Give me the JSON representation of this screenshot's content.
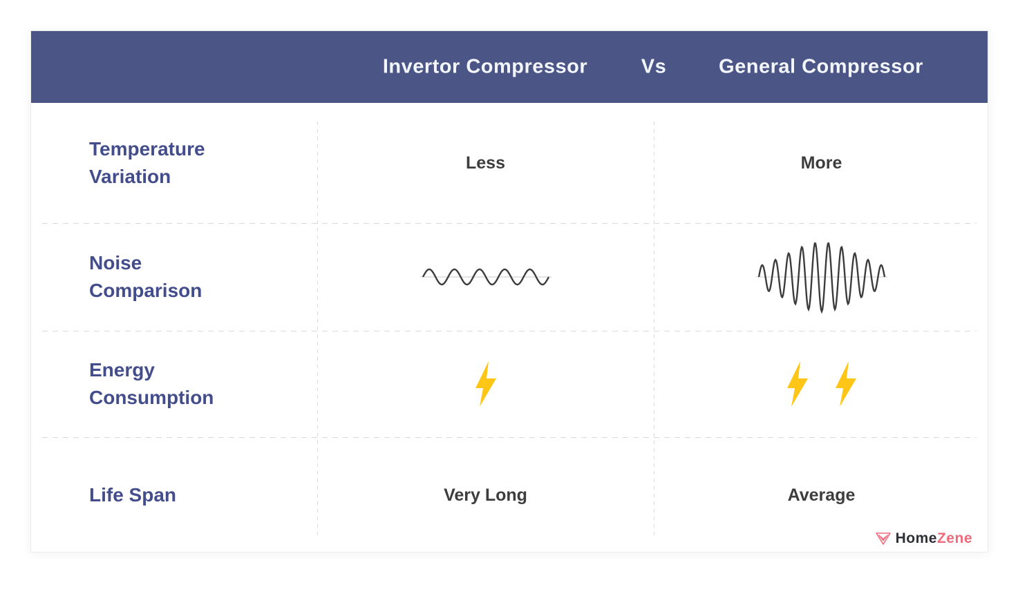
{
  "header": {
    "left_title": "Invertor Compressor",
    "separator": "Vs",
    "right_title": "General Compressor"
  },
  "rows": [
    {
      "label": "Temperature Variation",
      "invertor_value": "Less",
      "general_value": "More"
    },
    {
      "label": "Noise Comparison",
      "invertor_icon": "small-sound-wave",
      "general_icon": "large-sound-wave"
    },
    {
      "label": "Energy Consumption",
      "invertor_icon": "lightning-bolt",
      "invertor_icon_count": 1,
      "general_icon": "lightning-bolt",
      "general_icon_count": 2
    },
    {
      "label": "Life Span",
      "invertor_value": "Very Long",
      "general_value": "Average"
    }
  ],
  "footer": {
    "brand_icon": "homezene-triangle-icon",
    "brand_primary": "Home",
    "brand_accent": "Zene"
  },
  "colors": {
    "header_bg": "#4b5687",
    "header_text": "#f3f6fa",
    "label_text": "#434d8b",
    "value_text": "#3d3d3d",
    "divider": "#d9d9d9",
    "bolt_yellow": "#ffc617",
    "wave_stroke": "#3c3c3c",
    "brand_accent_color": "#ef6b7b",
    "brand_primary_color": "#2f2f38"
  }
}
